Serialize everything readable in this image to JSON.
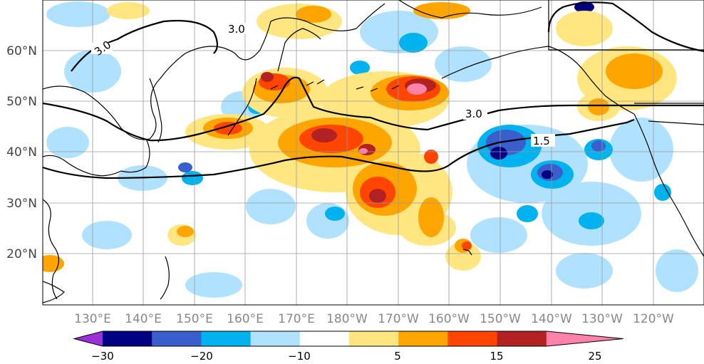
{
  "map": {
    "lat_labels": [
      "60°N",
      "50°N",
      "40°N",
      "30°N",
      "20°N"
    ],
    "lon_labels": [
      "130°E",
      "140°E",
      "150°E",
      "160°E",
      "170°E",
      "180°W",
      "170°W",
      "160°W",
      "150°W",
      "140°W",
      "130°W",
      "120°W"
    ],
    "contour_labels": [
      "3.0",
      "3.0",
      "3.0",
      "1.5"
    ],
    "grid": true
  },
  "colorbar": {
    "tick_labels": [
      "−30",
      "−20",
      "−10",
      "5",
      "15",
      "25"
    ],
    "colors": [
      "#9b30d9",
      "#000080",
      "#3a5fcd",
      "#00b2ee",
      "#b0e2ff",
      "#ffffff",
      "#ffe680",
      "#ffa500",
      "#ff4500",
      "#b22222",
      "#ff82ab"
    ],
    "extend": "both"
  }
}
